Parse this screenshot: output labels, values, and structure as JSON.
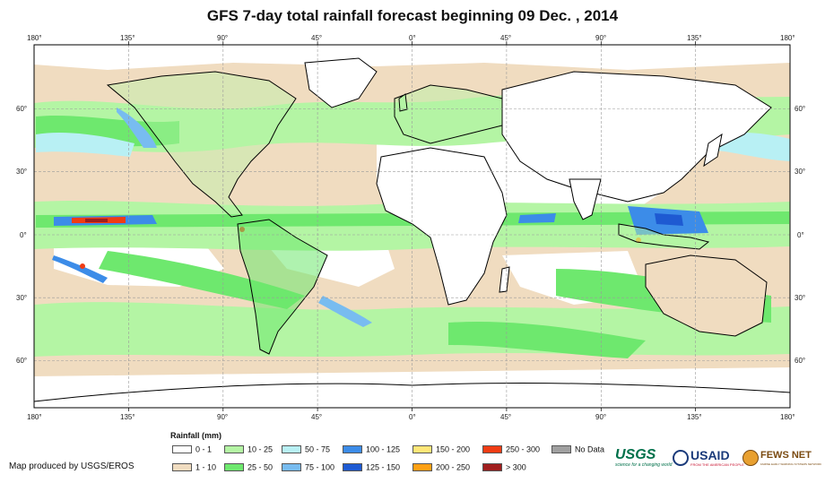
{
  "title": "GFS 7-day total rainfall forecast beginning 09 Dec. , 2014",
  "map": {
    "lon_ticks": [
      "180°",
      "135°",
      "90°",
      "45°",
      "0°",
      "45°",
      "90°",
      "135°",
      "180°"
    ],
    "lat_ticks": [
      "60°",
      "30°",
      "0°",
      "30°",
      "60°"
    ]
  },
  "legend": {
    "title": "Rainfall (mm)",
    "items": [
      {
        "label": "0 - 1",
        "color": "#ffffff"
      },
      {
        "label": "1 - 10",
        "color": "#f0dcc0"
      },
      {
        "label": "10 - 25",
        "color": "#b4f5a4"
      },
      {
        "label": "25 - 50",
        "color": "#6ee86e"
      },
      {
        "label": "50 - 75",
        "color": "#b8f0f4"
      },
      {
        "label": "75 - 100",
        "color": "#78bcf0"
      },
      {
        "label": "100 - 125",
        "color": "#3c8ce8"
      },
      {
        "label": "125 - 150",
        "color": "#1e5ad2"
      },
      {
        "label": "150 - 200",
        "color": "#ffe678"
      },
      {
        "label": "200 - 250",
        "color": "#ffa014"
      },
      {
        "label": "250 - 300",
        "color": "#f03c14"
      },
      {
        "label": "> 300",
        "color": "#a01e1e"
      },
      {
        "label": "No Data",
        "color": "#a0a0a0"
      }
    ]
  },
  "credit": "Map produced by USGS/EROS",
  "logos": {
    "usgs": {
      "name": "USGS",
      "tagline": "science for a changing world"
    },
    "usaid": {
      "name": "USAID",
      "tagline": "FROM THE AMERICAN PEOPLE"
    },
    "fews": {
      "name": "FEWS NET",
      "tagline": "FAMINE EARLY WARNING SYSTEMS NETWORK"
    }
  },
  "colors": {
    "ocean": "#ffffff",
    "land_outline": "#000000",
    "grid": "#9a9a9a"
  }
}
